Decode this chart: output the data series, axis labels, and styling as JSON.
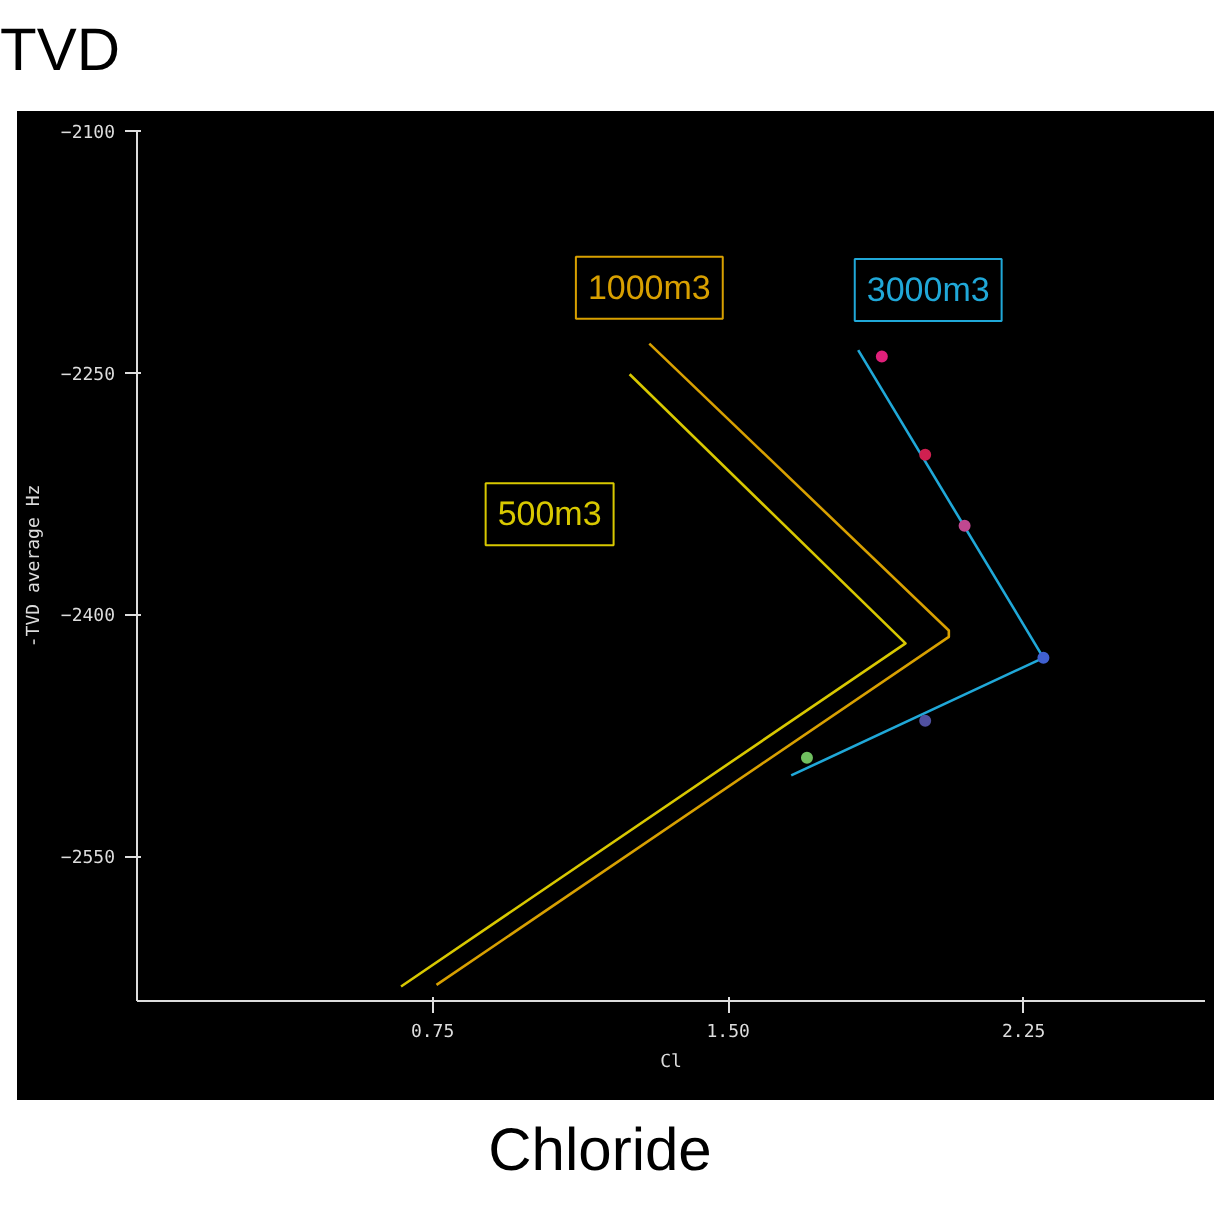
{
  "chart_data": {
    "type": "line",
    "title": "TVD",
    "xlabel": "Cl",
    "ylabel": "-TVD average Hz",
    "annotations": [
      "Chloride"
    ],
    "xlim": [
      0,
      2.71
    ],
    "ylim": [
      -2640,
      -2100
    ],
    "xticks": [
      0.75,
      {
        "value": 1.5,
        "label": "1.50"
      },
      2.25
    ],
    "yticks": [
      -2100,
      -2250,
      -2400,
      -2550
    ],
    "grid": false,
    "line_style": "solid",
    "marker": "none",
    "series": [
      {
        "name": "500m3",
        "color": "#d8c800",
        "x": [
          1.25,
          1.95,
          0.67
        ],
        "values": [
          -2251,
          -2418,
          -2631
        ]
      },
      {
        "name": "1000m3",
        "color": "#d8a000",
        "x": [
          1.3,
          2.06,
          2.06,
          0.76
        ],
        "values": [
          -2232,
          -2410,
          -2414,
          -2630
        ]
      },
      {
        "name": "3000m3",
        "color": "#20a8d8",
        "x": [
          1.83,
          2.3,
          1.66
        ],
        "values": [
          -2236,
          -2427,
          -2500
        ]
      },
      {
        "type": "scatter",
        "marker": "circle",
        "colors": [
          "#e0207a",
          "#d02050",
          "#c04890",
          "#4060d0",
          "#5050a0",
          "#70c060"
        ],
        "x": [
          1.89,
          2.0,
          2.1,
          2.3,
          2.0,
          1.7
        ],
        "values": [
          -2240,
          -2301,
          -2345,
          -2427,
          -2466,
          -2489
        ]
      }
    ]
  }
}
